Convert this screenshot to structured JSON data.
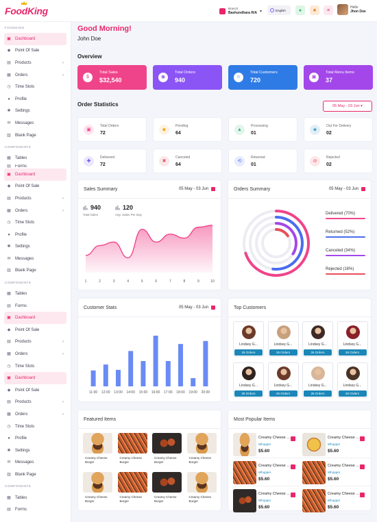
{
  "app": {
    "name": "FoodKing"
  },
  "header": {
    "branch_label": "Branch",
    "branch_name": "Bashundhara R/A",
    "language": "English",
    "hello": "Hello",
    "user_name": "Jhon Doe"
  },
  "sidebar": {
    "sections": [
      {
        "title": "FOODKING",
        "items": [
          "Dashboard",
          "Point Of Sale",
          "Products",
          "Orders",
          "Time Slots",
          "Profile",
          "Settings",
          "Messages",
          "Blank Page"
        ]
      },
      {
        "title": "COMPONENTS",
        "items": [
          "Tables",
          "Forms"
        ]
      }
    ],
    "repeat_items": [
      "Dashboard",
      "Point Of Sale",
      "Products",
      "Orders",
      "Time Slots",
      "Profile",
      "Settings",
      "Messages",
      "Blank Page",
      "COMPONENTS",
      "Tables",
      "Forms"
    ],
    "frag_items": [
      "Dashboard",
      "Point Of Sale",
      "Products",
      "Orders",
      "Time Slots"
    ],
    "tail_items": [
      "Dashboard",
      "Point Of Sale",
      "Products",
      "Orders",
      "Time Slots",
      "Profile",
      "Settings",
      "Messages",
      "Blank Page"
    ],
    "tail_sec": "COMPONENTS",
    "tail_end": [
      "Tables",
      "Forms"
    ]
  },
  "greeting": "Good Morning!",
  "greeting_name": "John Doe",
  "overview": {
    "title": "Overview",
    "cards": [
      {
        "label": "Total Sales",
        "value": "$32,540",
        "color": "#f0448a"
      },
      {
        "label": "Total Orders",
        "value": "940",
        "color": "#8b55f6"
      },
      {
        "label": "Total Customers",
        "value": "720",
        "color": "#2f7be6"
      },
      {
        "label": "Total Menu Items",
        "value": "37",
        "color": "#a347ea"
      }
    ]
  },
  "order_stats": {
    "title": "Order Statistics",
    "date_range": "05 May - 03 Jun",
    "items": [
      {
        "label": "Total Orders",
        "value": "72",
        "color": "#f0448a"
      },
      {
        "label": "Pending",
        "value": "64",
        "color": "#f5a623"
      },
      {
        "label": "Processing",
        "value": "01",
        "color": "#2bb673"
      },
      {
        "label": "Out For Delivery",
        "value": "02",
        "color": "#1b87b8"
      },
      {
        "label": "Delivered",
        "value": "72",
        "color": "#6a4cf0"
      },
      {
        "label": "Canceled",
        "value": "64",
        "color": "#e84e5a"
      },
      {
        "label": "Returned",
        "value": "01",
        "color": "#4a6cf0"
      },
      {
        "label": "Rejected",
        "value": "02",
        "color": "#e84e5a"
      }
    ]
  },
  "sales_summary": {
    "title": "Sales Summary",
    "date_range": "05 May - 03 Jun",
    "total_sales": "940",
    "total_sales_label": "Total Sales",
    "avg_sales": "120",
    "avg_sales_label": "Avg. Sales Per Day"
  },
  "orders_summary": {
    "title": "Orders Summary",
    "date_range": "05 May - 03 Jun",
    "legend": [
      {
        "label": "Delivered (70%)",
        "color": "#f0448a",
        "pct": 70
      },
      {
        "label": "Returned (52%)",
        "color": "#4a6cf0",
        "pct": 52
      },
      {
        "label": "Canceled (34%)",
        "color": "#a347ea",
        "pct": 34
      },
      {
        "label": "Rejected (16%)",
        "color": "#e84e5a",
        "pct": 16
      }
    ]
  },
  "customer_stats": {
    "title": "Customer Stats",
    "date_range": "05 May - 03 Jun"
  },
  "top_customers": {
    "title": "Top Customers",
    "items": [
      {
        "name": "Lindsey G...",
        "orders": "26 Orders"
      },
      {
        "name": "Lindsey G...",
        "orders": "26 Orders"
      },
      {
        "name": "Lindsey G...",
        "orders": "26 Orders"
      },
      {
        "name": "Lindsey G...",
        "orders": "26 Orders"
      },
      {
        "name": "Lindsey G...",
        "orders": "26 Orders"
      },
      {
        "name": "Lindsey G...",
        "orders": "26 Orders"
      },
      {
        "name": "Lindsey G...",
        "orders": "26 Orders"
      },
      {
        "name": "Lindsey G...",
        "orders": "26 Orders"
      }
    ]
  },
  "featured": {
    "title": "Featured Items",
    "items": [
      {
        "name": "Creamy Cheese Burger",
        "img": "burger"
      },
      {
        "name": "Creamy Cheese Burger",
        "img": "fries"
      },
      {
        "name": "Creamy Cheese Burger",
        "img": "wings"
      },
      {
        "name": "Creamy Cheese Burger",
        "img": "burger"
      },
      {
        "name": "Creamy Cheese Burger",
        "img": "burger"
      },
      {
        "name": "Creamy Cheese Burger",
        "img": "fries"
      },
      {
        "name": "Creamy Cheese Burger",
        "img": "wings"
      },
      {
        "name": "Creamy Cheese Burger",
        "img": "burger"
      }
    ]
  },
  "popular": {
    "title": "Most Popular Items",
    "items": [
      {
        "name": "Creamy Cheese ...",
        "sub": "Whopper",
        "price": "$5.60",
        "img": "burger"
      },
      {
        "name": "Creamy Cheese ...",
        "sub": "Whopper",
        "price": "$5.60",
        "img": "pizza"
      },
      {
        "name": "Creamy Cheese ...",
        "sub": "Whopper",
        "price": "$5.60",
        "img": "fries"
      },
      {
        "name": "Creamy Cheese ...",
        "sub": "Whopper",
        "price": "$5.60",
        "img": "fries"
      },
      {
        "name": "Creamy Cheese ...",
        "sub": "Whopper",
        "price": "$5.60",
        "img": "wings"
      },
      {
        "name": "Creamy Cheese ...",
        "sub": "Whopper",
        "price": "$5.60",
        "img": "fries"
      }
    ]
  },
  "chart_data": [
    {
      "type": "area",
      "title": "Sales Summary",
      "x": [
        1,
        2,
        3,
        4,
        5,
        6,
        7,
        8,
        9,
        10
      ],
      "y_norm": [
        0.35,
        0.55,
        0.62,
        0.3,
        0.88,
        0.62,
        0.78,
        0.7,
        0.92,
        0.96
      ],
      "color": "#f0448a"
    },
    {
      "type": "bar",
      "title": "Customer Stats",
      "categories": [
        "11:00",
        "12:00",
        "13:00",
        "14:00",
        "15:00",
        "16:00",
        "17:00",
        "18:00",
        "19:00",
        "20:00"
      ],
      "values": [
        27,
        37,
        28,
        60,
        43,
        86,
        43,
        72,
        14,
        77
      ],
      "ylim": [
        0,
        100
      ],
      "color": "#6a8bf5"
    },
    {
      "type": "radial",
      "title": "Orders Summary",
      "series": [
        {
          "name": "Delivered",
          "value": 70,
          "color": "#f0448a"
        },
        {
          "name": "Returned",
          "value": 52,
          "color": "#4a6cf0"
        },
        {
          "name": "Canceled",
          "value": 34,
          "color": "#a347ea"
        },
        {
          "name": "Rejected",
          "value": 16,
          "color": "#e84e5a"
        }
      ]
    }
  ]
}
